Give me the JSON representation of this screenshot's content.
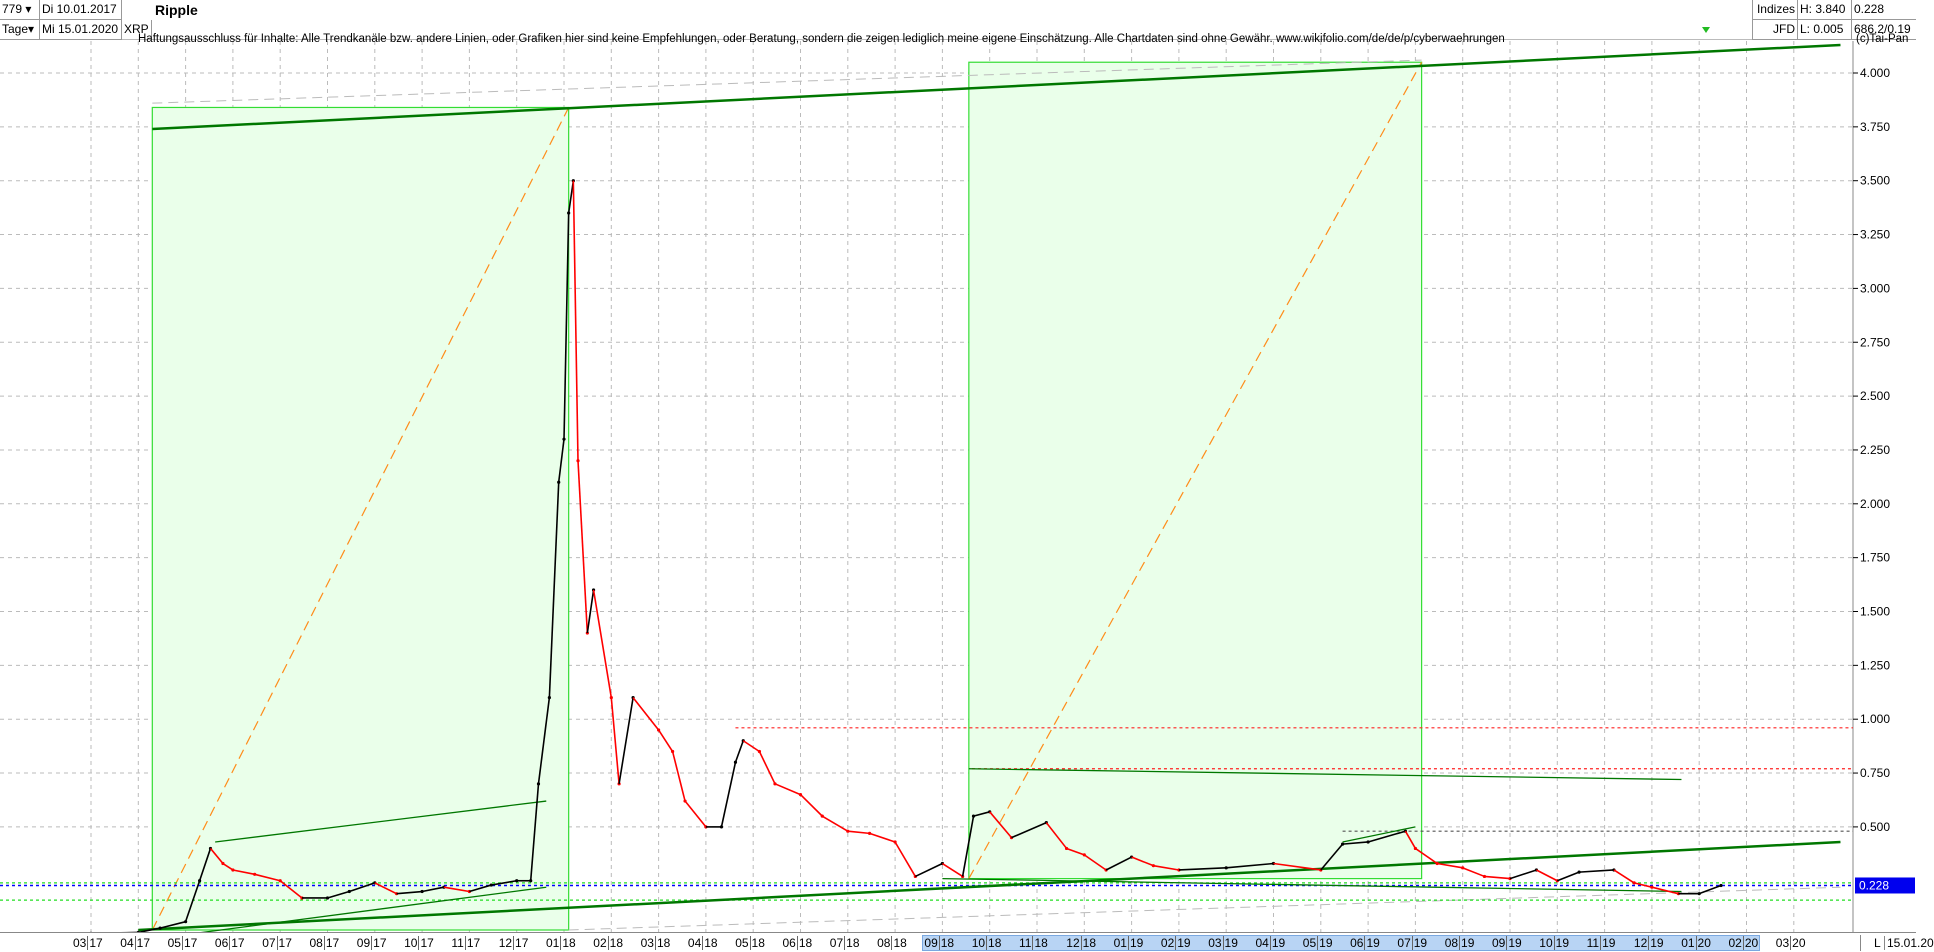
{
  "header": {
    "count": "779",
    "period": "Tage",
    "date_from": "Di 10.01.2017",
    "date_to": "Mi 15.01.2020",
    "symbol": "XRP",
    "title": "Ripple",
    "index_label": "Indizes",
    "source_label": "JFD",
    "high": "H: 3.840",
    "low": "L: 0.005",
    "last": "0.228",
    "extra": "686.2/0.19"
  },
  "disclaimer": "Haftungsausschluss für Inhalte: Alle Trendkanäle bzw. andere Linien, oder Grafiken hier sind keine Empfehlungen, oder Beratung, sondern die zeigen lediglich meine eigene Einschätzung. Alle Chartdaten sind ohne Gewähr.  www.wikifolio.com/de/de/p/cyberwaehrungen",
  "copyright": "(c)Tai-Pan",
  "footer": {
    "mode": "L",
    "current_date": "15.01.20"
  },
  "colors": {
    "up": "#000000",
    "down": "#ff0000",
    "trend": "#007700",
    "box": "#33dd33",
    "box_fill": "#eaffea",
    "diag": "#ff8c1a",
    "last_price": "#0000ff"
  },
  "chart_data": {
    "type": "line",
    "title": "Ripple",
    "ylim": [
      0,
      4.1
    ],
    "grid": true,
    "yticks": [
      "4.000",
      "3.750",
      "3.500",
      "3.250",
      "3.000",
      "2.750",
      "2.500",
      "2.250",
      "2.000",
      "1.750",
      "1.500",
      "1.250",
      "1.000",
      "0.750",
      "0.500"
    ],
    "last_price_label": "0.228",
    "xticks": [
      "03 17",
      "04 17",
      "05 17",
      "06 17",
      "07 17",
      "08 17",
      "09 17",
      "10 17",
      "11 17",
      "12 17",
      "01 18",
      "02 18",
      "03 18",
      "04 18",
      "05 18",
      "06 18",
      "07 18",
      "08 18",
      "09 18",
      "10 18",
      "11 18",
      "12 18",
      "01 19",
      "02 19",
      "03 19",
      "04 19",
      "05 19",
      "06 19",
      "07 19",
      "08 19",
      "09 19",
      "10 19",
      "11 19",
      "12 19",
      "01 20",
      "02 20",
      "03 20"
    ],
    "series": [
      {
        "x": [
          "2017-01-10",
          "2017-03-01",
          "2017-04-01",
          "2017-04-15",
          "2017-05-01",
          "2017-05-10",
          "2017-05-17",
          "2017-05-25",
          "2017-06-01",
          "2017-06-15",
          "2017-07-01",
          "2017-07-15",
          "2017-08-01",
          "2017-08-15",
          "2017-09-01",
          "2017-09-15",
          "2017-10-01",
          "2017-10-15",
          "2017-11-01",
          "2017-11-15",
          "2017-12-01",
          "2017-12-10",
          "2017-12-15",
          "2017-12-22",
          "2017-12-28",
          "2018-01-01",
          "2018-01-04",
          "2018-01-07",
          "2018-01-10",
          "2018-01-16",
          "2018-01-20",
          "2018-02-01",
          "2018-02-06",
          "2018-02-15",
          "2018-03-01",
          "2018-03-10",
          "2018-03-18",
          "2018-04-01",
          "2018-04-11",
          "2018-04-20",
          "2018-04-25",
          "2018-05-05",
          "2018-05-15",
          "2018-06-01",
          "2018-06-15",
          "2018-07-01",
          "2018-07-15",
          "2018-08-01",
          "2018-08-14",
          "2018-09-01",
          "2018-09-14",
          "2018-09-21",
          "2018-10-01",
          "2018-10-15",
          "2018-11-07",
          "2018-11-20",
          "2018-12-01",
          "2018-12-15",
          "2019-01-01",
          "2019-01-15",
          "2019-02-01",
          "2019-03-01",
          "2019-04-01",
          "2019-05-01",
          "2019-05-15",
          "2019-06-01",
          "2019-06-25",
          "2019-07-01",
          "2019-07-15",
          "2019-08-01",
          "2019-08-15",
          "2019-09-01",
          "2019-09-18",
          "2019-10-01",
          "2019-10-15",
          "2019-11-07",
          "2019-11-20",
          "2019-12-01",
          "2019-12-18",
          "2020-01-01",
          "2020-01-15"
        ],
        "y": [
          0.006,
          0.006,
          0.01,
          0.03,
          0.06,
          0.25,
          0.4,
          0.33,
          0.3,
          0.28,
          0.25,
          0.17,
          0.17,
          0.2,
          0.24,
          0.19,
          0.2,
          0.22,
          0.2,
          0.23,
          0.25,
          0.25,
          0.7,
          1.1,
          2.1,
          2.3,
          3.35,
          3.5,
          2.2,
          1.4,
          1.6,
          1.1,
          0.7,
          1.1,
          0.95,
          0.85,
          0.62,
          0.5,
          0.5,
          0.8,
          0.9,
          0.85,
          0.7,
          0.65,
          0.55,
          0.48,
          0.47,
          0.43,
          0.27,
          0.33,
          0.27,
          0.55,
          0.57,
          0.45,
          0.52,
          0.4,
          0.37,
          0.3,
          0.36,
          0.32,
          0.3,
          0.31,
          0.33,
          0.3,
          0.42,
          0.43,
          0.48,
          0.4,
          0.33,
          0.31,
          0.27,
          0.26,
          0.3,
          0.25,
          0.29,
          0.3,
          0.24,
          0.22,
          0.19,
          0.19,
          0.228
        ]
      }
    ],
    "annotations": {
      "boxes": [
        {
          "from": "2017-04-10",
          "to": "2018-01-04",
          "low": 0.0,
          "high": 3.84
        },
        {
          "from": "2018-09-18",
          "to": "2019-07-05",
          "low": 0.26,
          "high": 4.05
        }
      ],
      "trend_thick": [
        {
          "from": [
            "2017-04-10",
            3.74
          ],
          "to": [
            "2020-03-31",
            4.13
          ]
        },
        {
          "from": [
            "2017-04-01",
            0.0
          ],
          "to": [
            "2020-03-31",
            0.43
          ]
        }
      ],
      "trend_thin": [
        {
          "from": [
            "2017-05-20",
            0.43
          ],
          "to": [
            "2017-12-20",
            0.62
          ]
        },
        {
          "from": [
            "2017-05-01",
            0.0
          ],
          "to": [
            "2017-12-20",
            0.22
          ]
        },
        {
          "from": [
            "2018-09-18",
            0.77
          ],
          "to": [
            "2019-12-20",
            0.72
          ]
        },
        {
          "from": [
            "2019-05-15",
            0.43
          ],
          "to": [
            "2019-07-01",
            0.5
          ]
        },
        {
          "from": [
            "2018-09-01",
            0.26
          ],
          "to": [
            "2019-12-20",
            0.2
          ]
        }
      ],
      "red_dotted": [
        {
          "from": "2018-04-20",
          "price": 0.96
        },
        {
          "from": "2018-09-20",
          "price": 0.77
        },
        {
          "from": "2019-05-15",
          "price": 0.48,
          "color": "#555"
        }
      ],
      "green_dotted": [
        0.24,
        0.16
      ],
      "blue_dotted": 0.228
    }
  }
}
